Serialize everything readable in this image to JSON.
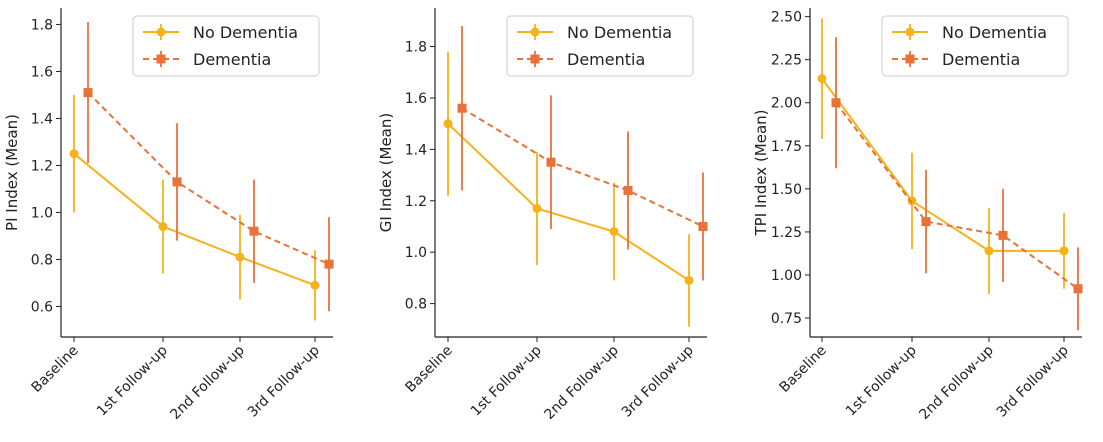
{
  "colors": {
    "no_dementia": "#F5B21A",
    "dementia": "#E8723A"
  },
  "chart_data": [
    {
      "type": "line",
      "categories": [
        "Baseline",
        "1st Follow-up",
        "2nd Follow-up",
        "3rd Follow-up"
      ],
      "xlabel": "",
      "ylabel": "PI Index (Mean)",
      "ylim": [
        0.47,
        1.87
      ],
      "yticks": [
        0.6,
        0.8,
        1.0,
        1.2,
        1.4,
        1.6,
        1.8
      ],
      "ytick_labels": [
        "0.6",
        "0.8",
        "1.0",
        "1.2",
        "1.4",
        "1.6",
        "1.8"
      ],
      "legend": "top-right",
      "series": [
        {
          "name": "No Dementia",
          "style": "solid",
          "marker": "circle",
          "values": [
            1.25,
            0.94,
            0.81,
            0.69
          ],
          "err_low": [
            1.0,
            0.74,
            0.63,
            0.54
          ],
          "err_high": [
            1.5,
            1.14,
            0.99,
            0.84
          ]
        },
        {
          "name": "Dementia",
          "style": "dashed",
          "marker": "square",
          "values": [
            1.51,
            1.13,
            0.92,
            0.78
          ],
          "err_low": [
            1.21,
            0.88,
            0.7,
            0.58
          ],
          "err_high": [
            1.81,
            1.38,
            1.14,
            0.98
          ]
        }
      ]
    },
    {
      "type": "line",
      "categories": [
        "Baseline",
        "1st Follow-up",
        "2nd Follow-up",
        "3rd Follow-up"
      ],
      "xlabel": "",
      "ylabel": "GI Index (Mean)",
      "ylim": [
        0.67,
        1.95
      ],
      "yticks": [
        0.8,
        1.0,
        1.2,
        1.4,
        1.6,
        1.8
      ],
      "ytick_labels": [
        "0.8",
        "1.0",
        "1.2",
        "1.4",
        "1.6",
        "1.8"
      ],
      "legend": "top-right",
      "series": [
        {
          "name": "No Dementia",
          "style": "solid",
          "marker": "circle",
          "values": [
            1.5,
            1.17,
            1.08,
            0.89
          ],
          "err_low": [
            1.22,
            0.95,
            0.89,
            0.71
          ],
          "err_high": [
            1.78,
            1.39,
            1.27,
            1.07
          ]
        },
        {
          "name": "Dementia",
          "style": "dashed",
          "marker": "square",
          "values": [
            1.56,
            1.35,
            1.24,
            1.1
          ],
          "err_low": [
            1.24,
            1.09,
            1.01,
            0.89
          ],
          "err_high": [
            1.88,
            1.61,
            1.47,
            1.31
          ]
        }
      ]
    },
    {
      "type": "line",
      "categories": [
        "Baseline",
        "1st Follow-up",
        "2nd Follow-up",
        "3rd Follow-up"
      ],
      "xlabel": "",
      "ylabel": "TPI Index (Mean)",
      "ylim": [
        0.64,
        2.55
      ],
      "yticks": [
        0.75,
        1.0,
        1.25,
        1.5,
        1.75,
        2.0,
        2.25,
        2.5
      ],
      "ytick_labels": [
        "0.75",
        "1.00",
        "1.25",
        "1.50",
        "1.75",
        "2.00",
        "2.25",
        "2.50"
      ],
      "legend": "top-right",
      "series": [
        {
          "name": "No Dementia",
          "style": "solid",
          "marker": "circle",
          "values": [
            2.14,
            1.43,
            1.14,
            1.14
          ],
          "err_low": [
            1.79,
            1.15,
            0.89,
            0.92
          ],
          "err_high": [
            2.49,
            1.71,
            1.39,
            1.36
          ]
        },
        {
          "name": "Dementia",
          "style": "dashed",
          "marker": "square",
          "values": [
            2.0,
            1.31,
            1.23,
            0.92
          ],
          "err_low": [
            1.62,
            1.01,
            0.96,
            0.68
          ],
          "err_high": [
            2.38,
            1.61,
            1.5,
            1.16
          ]
        }
      ]
    }
  ]
}
